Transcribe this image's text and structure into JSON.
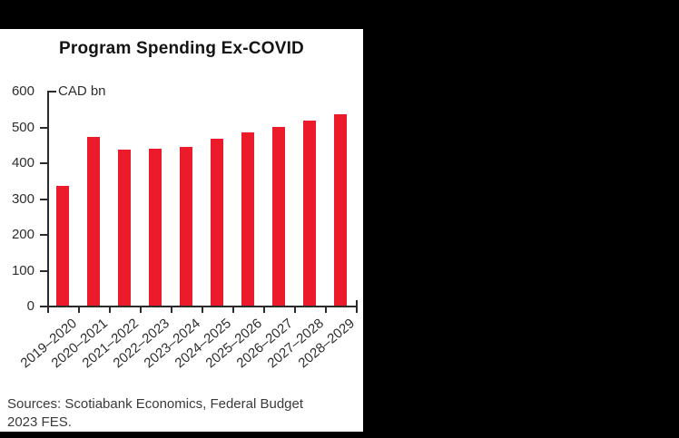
{
  "window": {
    "background_color": "#000000",
    "panel_color": "#ffffff"
  },
  "chart_data": {
    "type": "bar",
    "title": "Program Spending Ex-COVID",
    "unit_label": "CAD bn",
    "categories": [
      "2019–2020",
      "2020–2021",
      "2021–2022",
      "2022–2023",
      "2023–2024",
      "2024–2025",
      "2025–2026",
      "2026–2027",
      "2027–2028",
      "2028–2029"
    ],
    "values": [
      335,
      470,
      435,
      438,
      442,
      466,
      484,
      499,
      516,
      534
    ],
    "xlabel": "",
    "ylabel": "CAD bn",
    "ylim": [
      0,
      600
    ],
    "yticks": [
      0,
      100,
      200,
      300,
      400,
      500,
      600
    ],
    "grid": false,
    "legend": "none",
    "bar_color": "#EC1B2C",
    "axis_color": "#2b2b2b"
  },
  "source_note": "Sources: Scotiabank Economics, Federal Budget 2023 FES."
}
